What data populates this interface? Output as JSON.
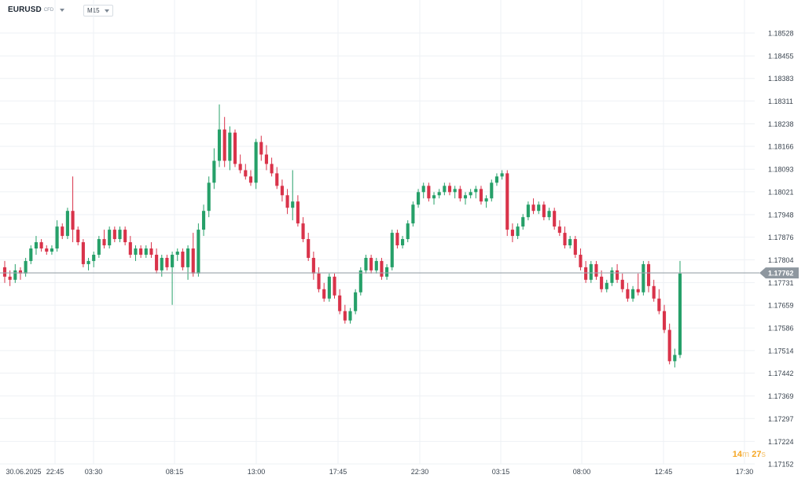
{
  "toolbar": {
    "symbol": "EURUSD",
    "symbol_type": "CFD",
    "timeframe": "M15"
  },
  "countdown": {
    "minutes": "14",
    "m_unit": "m",
    "seconds": "27",
    "s_unit": "s"
  },
  "colors": {
    "up": "#26a069",
    "down": "#d9334a",
    "grid": "#eef1f4",
    "price_line": "#9aa3ab",
    "price_tag": "#8e979f"
  },
  "chart_data": {
    "type": "candlestick",
    "symbol": "EURUSD",
    "timeframe": "M15",
    "y_ticks": [
      "1.18528",
      "1.18455",
      "1.18383",
      "1.18311",
      "1.18238",
      "1.18166",
      "1.18093",
      "1.18021",
      "1.17948",
      "1.17876",
      "1.17804",
      "1.17731",
      "1.17659",
      "1.17586",
      "1.17514",
      "1.17442",
      "1.17369",
      "1.17297",
      "1.17224",
      "1.17152"
    ],
    "ylim": [
      1.17152,
      1.18528
    ],
    "x_tick_labels": [
      "30.06.2025",
      "22:45",
      "03:30",
      "08:15",
      "13:00",
      "17:45",
      "22:30",
      "03:15",
      "08:00",
      "12:45",
      "17:30"
    ],
    "current_price": "1.17762",
    "grid": true,
    "candles": [
      [
        1.1778,
        1.178,
        1.1773,
        1.1775
      ],
      [
        1.1775,
        1.1777,
        1.1772,
        1.1774
      ],
      [
        1.1774,
        1.1779,
        1.1773,
        1.1777
      ],
      [
        1.1777,
        1.1778,
        1.1774,
        1.1776
      ],
      [
        1.1776,
        1.1781,
        1.1775,
        1.178
      ],
      [
        1.178,
        1.1785,
        1.1779,
        1.1784
      ],
      [
        1.1784,
        1.1788,
        1.1782,
        1.1786
      ],
      [
        1.1786,
        1.1787,
        1.1783,
        1.1784
      ],
      [
        1.1784,
        1.1785,
        1.1782,
        1.1783
      ],
      [
        1.1783,
        1.1785,
        1.1782,
        1.1784
      ],
      [
        1.1784,
        1.1793,
        1.1783,
        1.1791
      ],
      [
        1.1791,
        1.1792,
        1.1787,
        1.1788
      ],
      [
        1.1788,
        1.1797,
        1.1787,
        1.1796
      ],
      [
        1.1796,
        1.1807,
        1.1786,
        1.179
      ],
      [
        1.179,
        1.1791,
        1.1785,
        1.1786
      ],
      [
        1.1786,
        1.1787,
        1.1778,
        1.1779
      ],
      [
        1.1779,
        1.1781,
        1.1777,
        1.178
      ],
      [
        1.178,
        1.1783,
        1.1778,
        1.1782
      ],
      [
        1.1782,
        1.1788,
        1.1781,
        1.1787
      ],
      [
        1.1787,
        1.179,
        1.1784,
        1.1785
      ],
      [
        1.1785,
        1.1791,
        1.1784,
        1.179
      ],
      [
        1.179,
        1.1791,
        1.1786,
        1.1787
      ],
      [
        1.1787,
        1.1791,
        1.1786,
        1.179
      ],
      [
        1.179,
        1.1791,
        1.1785,
        1.1786
      ],
      [
        1.1786,
        1.1788,
        1.1781,
        1.1782
      ],
      [
        1.1782,
        1.1785,
        1.178,
        1.1784
      ],
      [
        1.1784,
        1.1785,
        1.1781,
        1.1782
      ],
      [
        1.1782,
        1.1785,
        1.1781,
        1.1784
      ],
      [
        1.1784,
        1.1786,
        1.1781,
        1.1782
      ],
      [
        1.1782,
        1.1784,
        1.1776,
        1.1777
      ],
      [
        1.1777,
        1.1782,
        1.1775,
        1.1781
      ],
      [
        1.1781,
        1.1782,
        1.1777,
        1.1778
      ],
      [
        1.1778,
        1.1783,
        1.1766,
        1.1782
      ],
      [
        1.1782,
        1.1784,
        1.178,
        1.1783
      ],
      [
        1.1783,
        1.1784,
        1.1777,
        1.1778
      ],
      [
        1.1778,
        1.1785,
        1.1774,
        1.1784
      ],
      [
        1.1784,
        1.1789,
        1.1775,
        1.1776
      ],
      [
        1.1776,
        1.1792,
        1.1775,
        1.179
      ],
      [
        1.179,
        1.1798,
        1.1788,
        1.1796
      ],
      [
        1.1796,
        1.1807,
        1.1794,
        1.1805
      ],
      [
        1.1805,
        1.1816,
        1.1803,
        1.1812
      ],
      [
        1.1812,
        1.183,
        1.181,
        1.1822
      ],
      [
        1.1822,
        1.1826,
        1.181,
        1.1812
      ],
      [
        1.1812,
        1.1823,
        1.1809,
        1.1821
      ],
      [
        1.1821,
        1.1822,
        1.181,
        1.1811
      ],
      [
        1.1811,
        1.1814,
        1.1808,
        1.1809
      ],
      [
        1.1809,
        1.1811,
        1.1806,
        1.1807
      ],
      [
        1.1807,
        1.1809,
        1.1804,
        1.1805
      ],
      [
        1.1805,
        1.1819,
        1.1803,
        1.1818
      ],
      [
        1.1818,
        1.182,
        1.1812,
        1.1814
      ],
      [
        1.1814,
        1.1817,
        1.1809,
        1.1811
      ],
      [
        1.1811,
        1.1813,
        1.1807,
        1.1808
      ],
      [
        1.1808,
        1.181,
        1.1803,
        1.1804
      ],
      [
        1.1804,
        1.1806,
        1.1799,
        1.1801
      ],
      [
        1.1801,
        1.1803,
        1.1795,
        1.1797
      ],
      [
        1.1797,
        1.1809,
        1.1793,
        1.1799
      ],
      [
        1.1799,
        1.1801,
        1.1791,
        1.1792
      ],
      [
        1.1792,
        1.1794,
        1.1786,
        1.1787
      ],
      [
        1.1787,
        1.1789,
        1.178,
        1.1781
      ],
      [
        1.1781,
        1.1783,
        1.1774,
        1.1776
      ],
      [
        1.1776,
        1.1778,
        1.177,
        1.1771
      ],
      [
        1.1771,
        1.1773,
        1.1767,
        1.1768
      ],
      [
        1.1768,
        1.1776,
        1.1767,
        1.1775
      ],
      [
        1.1775,
        1.1776,
        1.1768,
        1.1769
      ],
      [
        1.1769,
        1.1771,
        1.1763,
        1.1764
      ],
      [
        1.1764,
        1.1766,
        1.176,
        1.1761
      ],
      [
        1.1761,
        1.1765,
        1.176,
        1.1764
      ],
      [
        1.1764,
        1.1771,
        1.1763,
        1.177
      ],
      [
        1.177,
        1.1778,
        1.1769,
        1.1777
      ],
      [
        1.1777,
        1.1782,
        1.1776,
        1.1781
      ],
      [
        1.1781,
        1.1782,
        1.1776,
        1.1777
      ],
      [
        1.1777,
        1.1781,
        1.1776,
        1.178
      ],
      [
        1.178,
        1.1781,
        1.1774,
        1.1775
      ],
      [
        1.1775,
        1.1779,
        1.1774,
        1.1778
      ],
      [
        1.1778,
        1.179,
        1.1777,
        1.1789
      ],
      [
        1.1789,
        1.179,
        1.1784,
        1.1785
      ],
      [
        1.1785,
        1.1788,
        1.1784,
        1.1787
      ],
      [
        1.1787,
        1.1793,
        1.1786,
        1.1792
      ],
      [
        1.1792,
        1.1799,
        1.1791,
        1.1798
      ],
      [
        1.1798,
        1.1803,
        1.1797,
        1.1802
      ],
      [
        1.1802,
        1.1805,
        1.18,
        1.1804
      ],
      [
        1.1804,
        1.1805,
        1.1799,
        1.18
      ],
      [
        1.18,
        1.1802,
        1.1798,
        1.1801
      ],
      [
        1.1801,
        1.1803,
        1.18,
        1.1802
      ],
      [
        1.1802,
        1.1805,
        1.1801,
        1.1804
      ],
      [
        1.1804,
        1.1805,
        1.1801,
        1.1802
      ],
      [
        1.1802,
        1.1804,
        1.18,
        1.1803
      ],
      [
        1.1803,
        1.1804,
        1.1799,
        1.18
      ],
      [
        1.18,
        1.1802,
        1.1798,
        1.1801
      ],
      [
        1.1801,
        1.1803,
        1.18,
        1.1802
      ],
      [
        1.1802,
        1.1804,
        1.18,
        1.1803
      ],
      [
        1.1803,
        1.1804,
        1.1798,
        1.1799
      ],
      [
        1.1799,
        1.1801,
        1.1797,
        1.18
      ],
      [
        1.18,
        1.1806,
        1.1799,
        1.1805
      ],
      [
        1.1805,
        1.1808,
        1.1804,
        1.1807
      ],
      [
        1.1807,
        1.1809,
        1.1806,
        1.1808
      ],
      [
        1.1808,
        1.1809,
        1.1788,
        1.179
      ],
      [
        1.179,
        1.1792,
        1.1786,
        1.1788
      ],
      [
        1.1788,
        1.1792,
        1.1787,
        1.1791
      ],
      [
        1.1791,
        1.1795,
        1.179,
        1.1794
      ],
      [
        1.1794,
        1.1799,
        1.1793,
        1.1798
      ],
      [
        1.1798,
        1.18,
        1.1795,
        1.1796
      ],
      [
        1.1796,
        1.1799,
        1.1795,
        1.1798
      ],
      [
        1.1798,
        1.1799,
        1.1793,
        1.1794
      ],
      [
        1.1794,
        1.1797,
        1.1793,
        1.1796
      ],
      [
        1.1796,
        1.1797,
        1.179,
        1.1791
      ],
      [
        1.1791,
        1.1793,
        1.1788,
        1.1789
      ],
      [
        1.1789,
        1.1791,
        1.1784,
        1.1785
      ],
      [
        1.1785,
        1.1788,
        1.1784,
        1.1787
      ],
      [
        1.1787,
        1.1788,
        1.1781,
        1.1782
      ],
      [
        1.1782,
        1.1784,
        1.1777,
        1.1778
      ],
      [
        1.1778,
        1.178,
        1.1773,
        1.1774
      ],
      [
        1.1774,
        1.178,
        1.1773,
        1.1779
      ],
      [
        1.1779,
        1.178,
        1.1774,
        1.1775
      ],
      [
        1.1775,
        1.1777,
        1.177,
        1.1771
      ],
      [
        1.1771,
        1.1774,
        1.177,
        1.1773
      ],
      [
        1.1773,
        1.1778,
        1.1772,
        1.1777
      ],
      [
        1.1777,
        1.1779,
        1.1773,
        1.1774
      ],
      [
        1.1774,
        1.1776,
        1.177,
        1.1771
      ],
      [
        1.1771,
        1.1773,
        1.1767,
        1.1768
      ],
      [
        1.1768,
        1.1772,
        1.1767,
        1.1771
      ],
      [
        1.1771,
        1.1776,
        1.1769,
        1.177
      ],
      [
        1.177,
        1.178,
        1.1769,
        1.1779
      ],
      [
        1.1779,
        1.178,
        1.177,
        1.1772
      ],
      [
        1.1772,
        1.1774,
        1.1767,
        1.1768
      ],
      [
        1.1768,
        1.1771,
        1.1763,
        1.1764
      ],
      [
        1.1764,
        1.1766,
        1.1757,
        1.1758
      ],
      [
        1.1758,
        1.176,
        1.1747,
        1.1748
      ],
      [
        1.1748,
        1.1752,
        1.1746,
        1.175
      ],
      [
        1.175,
        1.178,
        1.1749,
        1.1776
      ]
    ]
  }
}
